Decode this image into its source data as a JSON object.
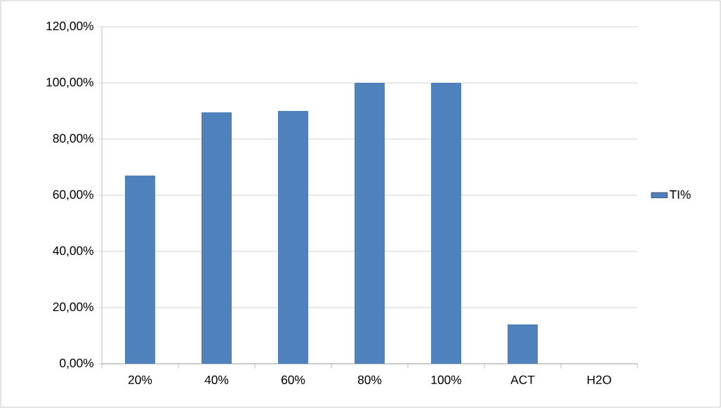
{
  "chart_data": {
    "type": "bar",
    "categories": [
      "20%",
      "40%",
      "60%",
      "80%",
      "100%",
      "ACT",
      "H2O"
    ],
    "series": [
      {
        "name": "TI%",
        "color": "#4f81bd",
        "values": [
          67,
          89.5,
          90,
          100,
          100,
          14,
          0
        ]
      }
    ],
    "ylim": [
      0,
      120
    ],
    "yticks": [
      {
        "value": 0,
        "label": "0,00%"
      },
      {
        "value": 20,
        "label": "20,00%"
      },
      {
        "value": 40,
        "label": "40,00%"
      },
      {
        "value": 60,
        "label": "60,00%"
      },
      {
        "value": 80,
        "label": "80,00%"
      },
      {
        "value": 100,
        "label": "100,00%"
      },
      {
        "value": 120,
        "label": "120,00%"
      }
    ],
    "grid": "y",
    "legend": "right"
  }
}
